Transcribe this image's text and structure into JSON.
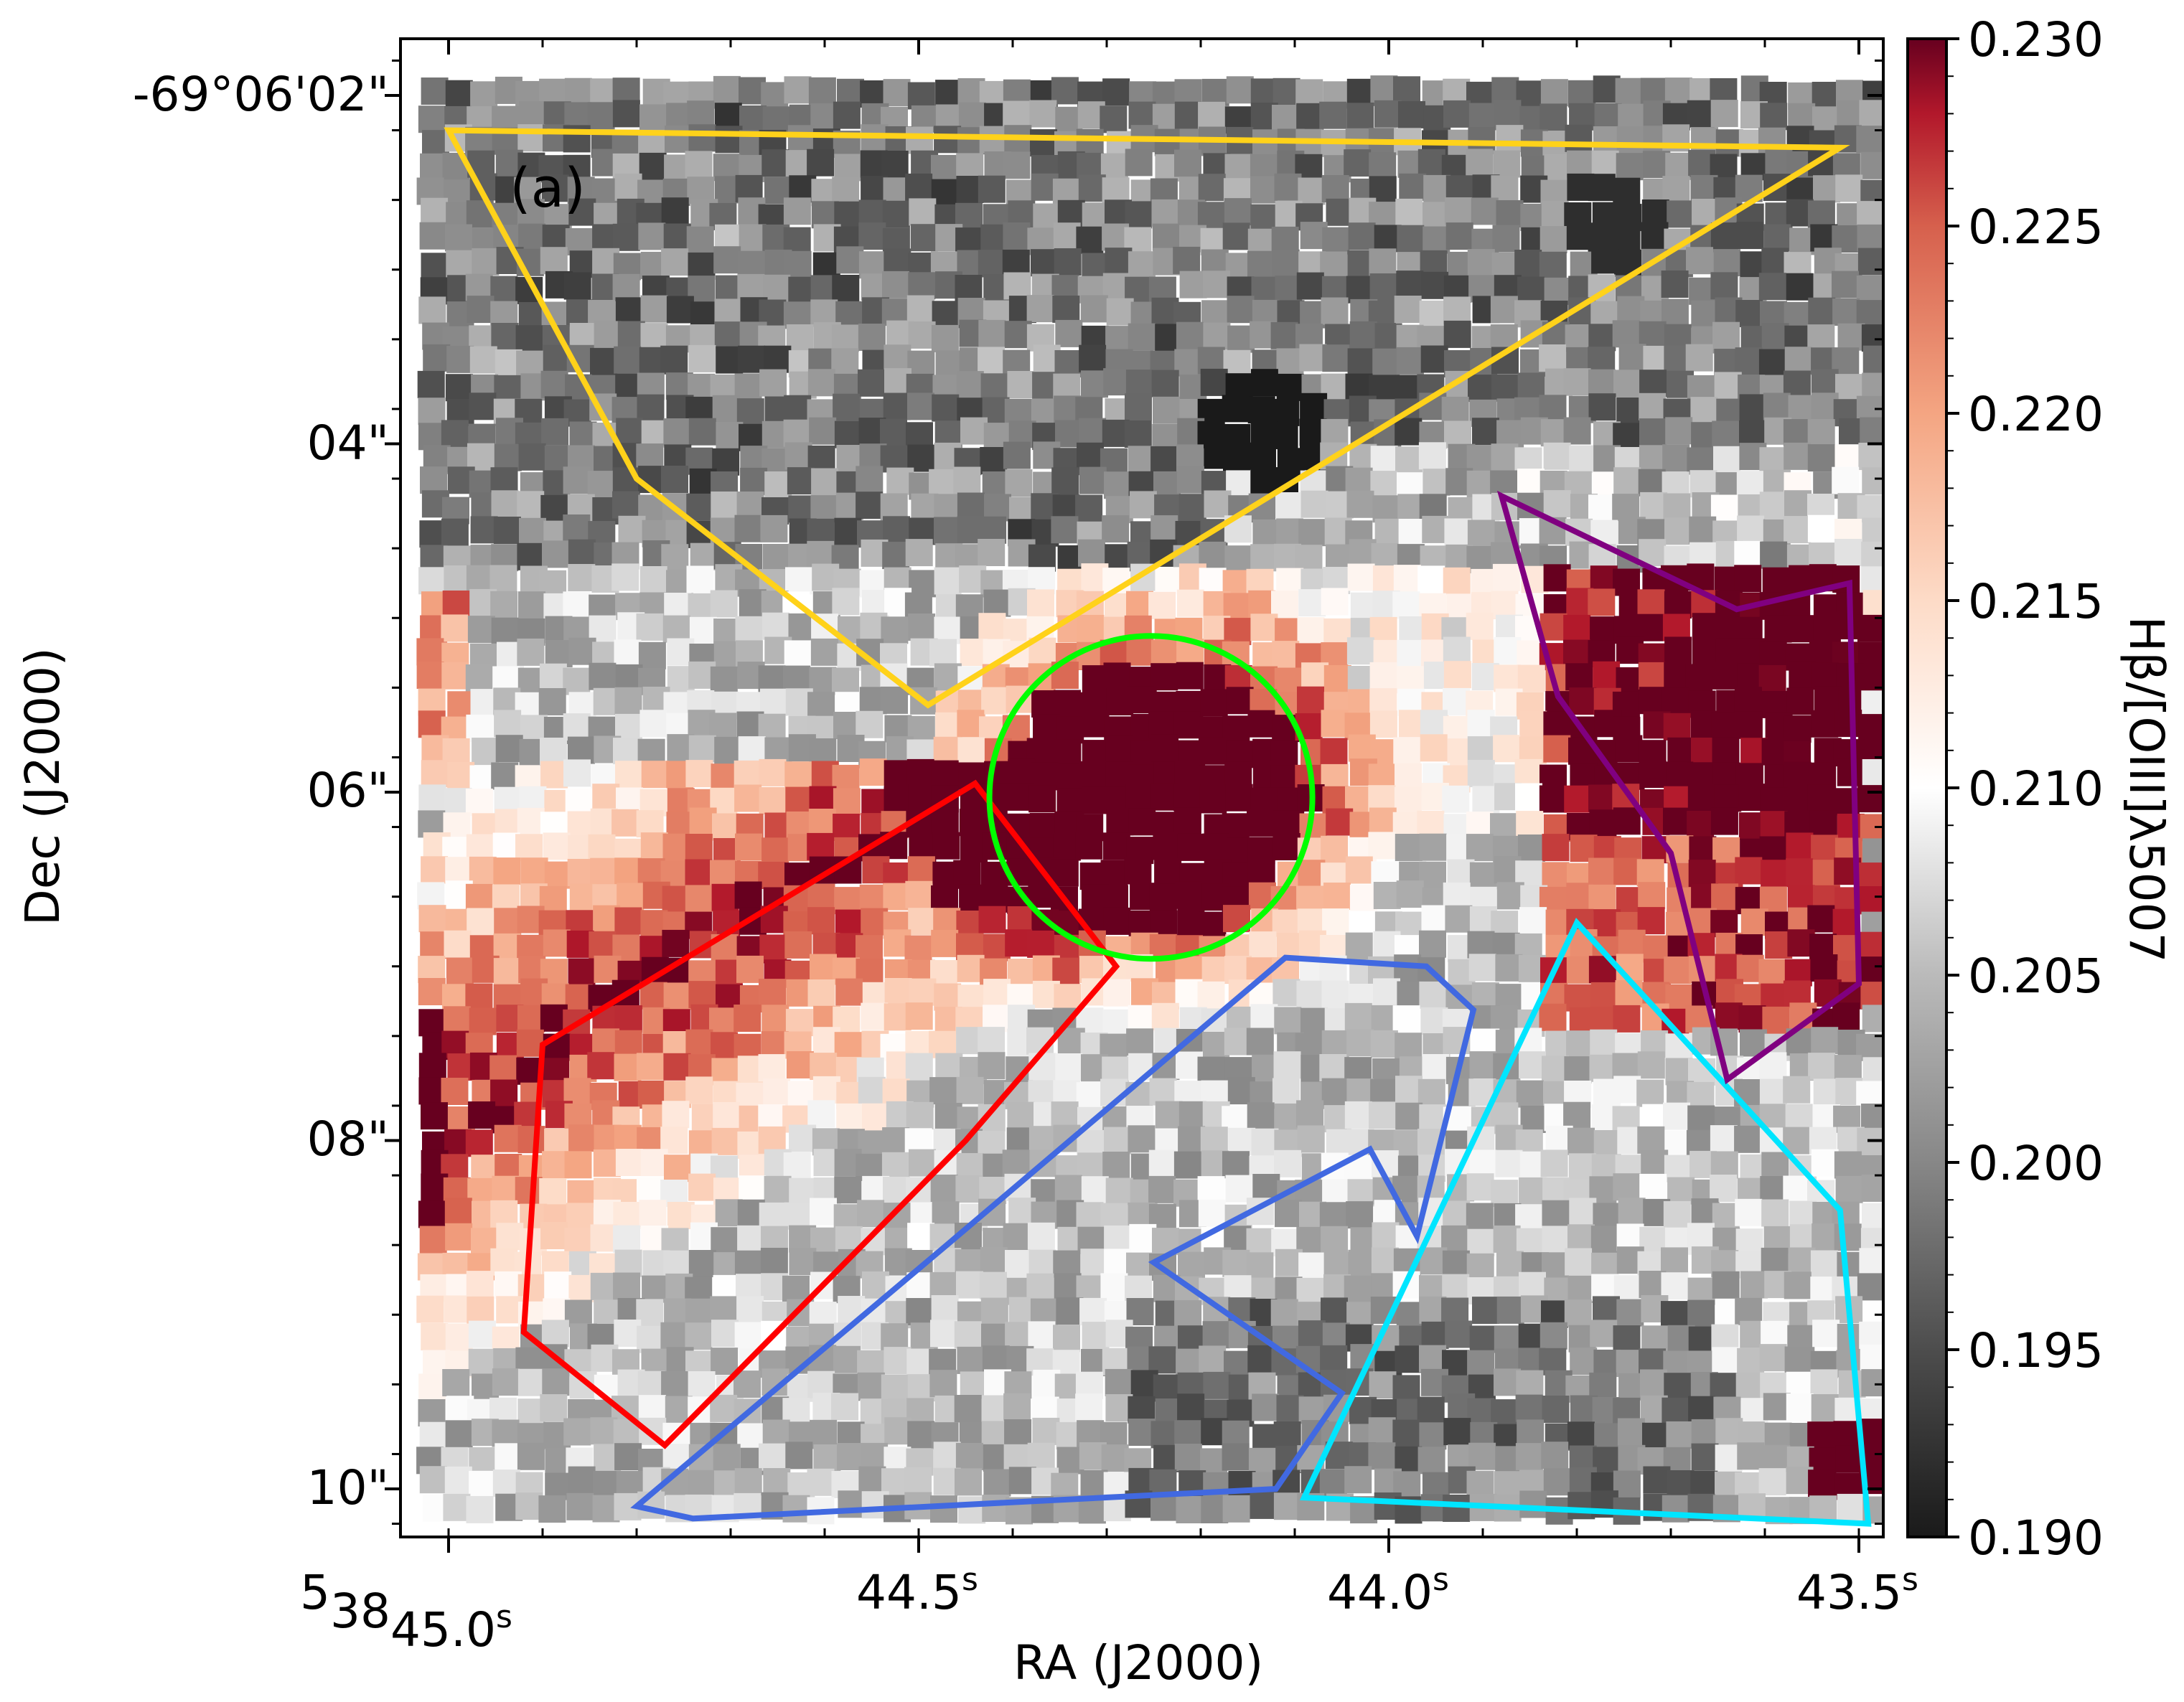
{
  "chart_data": {
    "type": "heatmap",
    "panel_label": "(a)",
    "xlabel": "RA (J2000)",
    "ylabel": "Dec (J2000)",
    "colorbar": {
      "label": "Hβ/[OIII]λ5007",
      "min": 0.19,
      "max": 0.23,
      "colormap": "RdGy_r",
      "ticks": [
        {
          "value": 0.19,
          "label": "0.190"
        },
        {
          "value": 0.195,
          "label": "0.195"
        },
        {
          "value": 0.2,
          "label": "0.200"
        },
        {
          "value": 0.205,
          "label": "0.205"
        },
        {
          "value": 0.21,
          "label": "0.210"
        },
        {
          "value": 0.215,
          "label": "0.215"
        },
        {
          "value": 0.22,
          "label": "0.220"
        },
        {
          "value": 0.225,
          "label": "0.225"
        },
        {
          "value": 0.23,
          "label": "0.230"
        }
      ]
    },
    "x_ticks": [
      {
        "ra_sec": 45.0,
        "h": "5",
        "m": "38",
        "sec_text": "45.0",
        "unit": "s"
      },
      {
        "ra_sec": 44.5,
        "h": "",
        "m": "",
        "sec_text": "44.5",
        "unit": "s"
      },
      {
        "ra_sec": 44.0,
        "h": "",
        "m": "",
        "sec_text": "44.0",
        "unit": "s"
      },
      {
        "ra_sec": 43.5,
        "h": "",
        "m": "",
        "sec_text": "43.5",
        "unit": "s"
      }
    ],
    "y_ticks": [
      {
        "dec_arcsec": 2,
        "label": "-69°06'02\""
      },
      {
        "dec_arcsec": 4,
        "label": "04\""
      },
      {
        "dec_arcsec": 6,
        "label": "06\""
      },
      {
        "dec_arcsec": 8,
        "label": "08\""
      },
      {
        "dec_arcsec": 10,
        "label": "10\""
      }
    ],
    "xlim": [
      45.0,
      43.48
    ],
    "ylim": [
      10.3,
      1.66
    ],
    "regions": [
      {
        "name": "yellow-region",
        "shape": "polygon",
        "color": "#ffd21a",
        "points": [
          [
            45.0,
            2.2
          ],
          [
            43.52,
            2.3
          ],
          [
            44.49,
            5.5
          ],
          [
            44.8,
            4.2
          ]
        ]
      },
      {
        "name": "red-region",
        "shape": "polygon",
        "color": "#ff0000",
        "points": [
          [
            44.44,
            5.95
          ],
          [
            44.29,
            7.0
          ],
          [
            44.45,
            8.0
          ],
          [
            44.77,
            9.75
          ],
          [
            44.92,
            9.1
          ],
          [
            44.9,
            7.45
          ]
        ]
      },
      {
        "name": "green-region",
        "shape": "circle",
        "color": "#00ff00",
        "center": [
          44.253,
          6.03
        ],
        "radius": 0.94
      },
      {
        "name": "blue-region",
        "shape": "polygon",
        "color": "#4169e1",
        "points": [
          [
            44.47,
            8.6
          ],
          [
            44.8,
            10.1
          ],
          [
            44.74,
            10.17
          ],
          [
            44.12,
            10.0
          ],
          [
            44.05,
            9.45
          ],
          [
            44.25,
            8.7
          ],
          [
            44.02,
            8.05
          ],
          [
            43.97,
            8.55
          ],
          [
            43.91,
            7.25
          ],
          [
            43.96,
            7.0
          ],
          [
            44.11,
            6.95
          ]
        ]
      },
      {
        "name": "cyan-region",
        "shape": "polygon",
        "color": "#00e5ff",
        "points": [
          [
            43.8,
            6.75
          ],
          [
            43.52,
            8.4
          ],
          [
            43.49,
            10.2
          ],
          [
            44.09,
            10.05
          ]
        ]
      },
      {
        "name": "purple-region",
        "shape": "polygon",
        "color": "#800080",
        "points": [
          [
            43.88,
            4.3
          ],
          [
            43.82,
            5.45
          ],
          [
            43.7,
            6.35
          ],
          [
            43.64,
            7.65
          ],
          [
            43.5,
            7.1
          ],
          [
            43.51,
            4.8
          ],
          [
            43.63,
            4.95
          ]
        ]
      }
    ],
    "dominant_ratio_zones": [
      {
        "name": "compact-source",
        "value": 0.23
      },
      {
        "name": "red-arm",
        "value": 0.226
      },
      {
        "name": "purple-zone",
        "value": 0.228
      },
      {
        "name": "dark-knot",
        "value": 0.19
      }
    ]
  }
}
